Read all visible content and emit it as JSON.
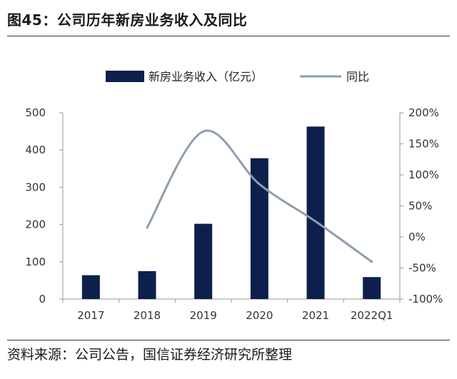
{
  "header": {
    "title": "图45：公司历年新房业务收入及同比"
  },
  "footer": {
    "source": "资料来源：公司公告，国信证券经济研究所整理"
  },
  "colors": {
    "bar": "#0d1f4d",
    "line": "#8c9eb1",
    "axis": "#999999"
  },
  "chart_data": {
    "type": "bar",
    "categories": [
      "2017",
      "2018",
      "2019",
      "2020",
      "2021",
      "2022Q1"
    ],
    "series": [
      {
        "name": "新房业务收入（亿元）",
        "type": "bar",
        "axis": "left",
        "values": [
          64,
          75,
          202,
          378,
          463,
          59
        ]
      },
      {
        "name": "同比",
        "type": "line",
        "axis": "right",
        "values": [
          null,
          15,
          170,
          85,
          25,
          -40
        ]
      }
    ],
    "left_axis": {
      "range": [
        0,
        500
      ],
      "ticks": [
        "0",
        "100",
        "200",
        "300",
        "400",
        "500"
      ]
    },
    "right_axis": {
      "range": [
        -100,
        200
      ],
      "ticks": [
        "-100%",
        "-50%",
        "0%",
        "50%",
        "100%",
        "150%",
        "200%"
      ]
    },
    "legend_position": "top-center",
    "grid": false
  }
}
